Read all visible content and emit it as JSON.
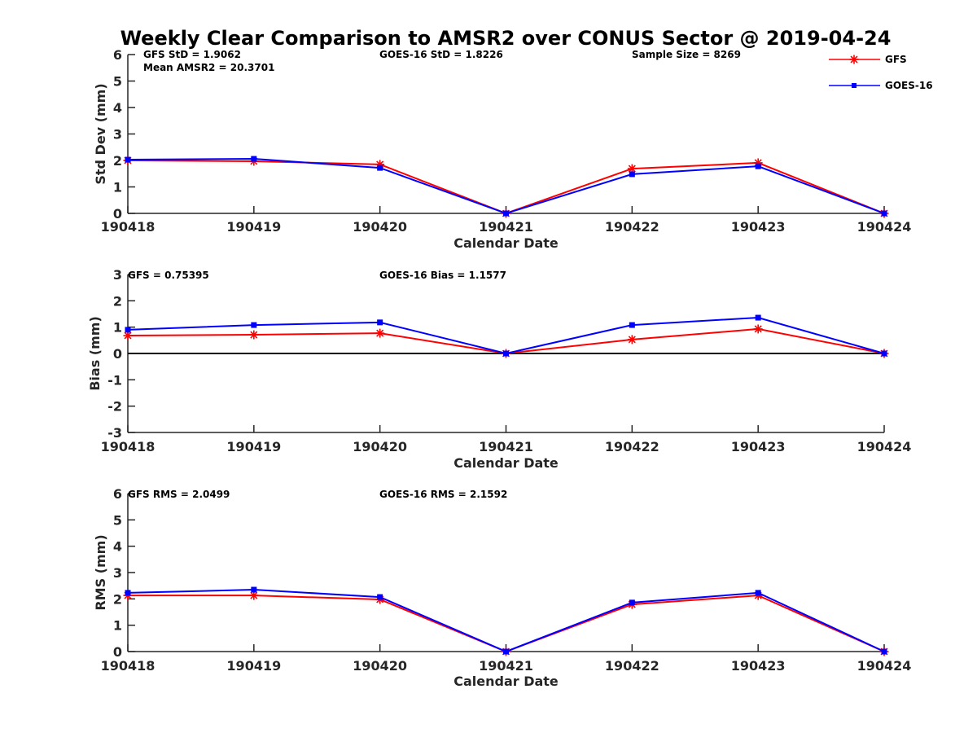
{
  "title": "Weekly Clear Comparison to AMSR2 over CONUS Sector @ 2019-04-24",
  "legend": {
    "placement": "top-right",
    "entries": [
      {
        "name": "GFS",
        "color": "#ff0000",
        "marker": "asterisk"
      },
      {
        "name": "GOES-16",
        "color": "#0000ff",
        "marker": "square"
      }
    ]
  },
  "chart_data": [
    {
      "type": "line",
      "title": "",
      "xlabel": "Calendar Date",
      "ylabel": "Std Dev (mm)",
      "categories": [
        "190418",
        "190419",
        "190420",
        "190421",
        "190422",
        "190423",
        "190424"
      ],
      "yticks": [
        "0",
        "1",
        "2",
        "3",
        "4",
        "5",
        "6"
      ],
      "ylim": [
        0,
        6
      ],
      "zero_line": false,
      "grid": false,
      "annotations": [
        {
          "id": "gfs",
          "text": "GFS StD = 1.9062"
        },
        {
          "id": "mean",
          "text": "Mean AMSR2 = 20.3701"
        },
        {
          "id": "goes",
          "text": "GOES-16 StD = 1.8226"
        },
        {
          "id": "sample",
          "text": "Sample Size = 8269"
        }
      ],
      "series": [
        {
          "name": "GFS",
          "color": "#ff0000",
          "marker": "asterisk",
          "values": [
            2.0,
            1.97,
            1.85,
            0,
            1.69,
            1.91,
            0
          ]
        },
        {
          "name": "GOES-16",
          "color": "#0000ff",
          "marker": "square",
          "values": [
            2.03,
            2.06,
            1.72,
            0,
            1.48,
            1.78,
            0
          ]
        }
      ]
    },
    {
      "type": "line",
      "title": "",
      "xlabel": "Calendar Date",
      "ylabel": "Bias (mm)",
      "categories": [
        "190418",
        "190419",
        "190420",
        "190421",
        "190422",
        "190423",
        "190424"
      ],
      "yticks": [
        "-3",
        "-2",
        "-1",
        "0",
        "1",
        "2",
        "3"
      ],
      "ylim": [
        -3,
        3
      ],
      "zero_line": true,
      "grid": false,
      "annotations": [
        {
          "id": "gfs",
          "text": "GFS = 0.75395"
        },
        {
          "id": "goes",
          "text": "GOES-16 Bias  = 1.1577"
        }
      ],
      "series": [
        {
          "name": "GFS",
          "color": "#ff0000",
          "marker": "asterisk",
          "values": [
            0.68,
            0.71,
            0.77,
            0,
            0.53,
            0.93,
            0
          ]
        },
        {
          "name": "GOES-16",
          "color": "#0000ff",
          "marker": "square",
          "values": [
            0.9,
            1.08,
            1.18,
            0,
            1.08,
            1.36,
            0
          ]
        }
      ]
    },
    {
      "type": "line",
      "title": "",
      "xlabel": "Calendar Date",
      "ylabel": "RMS (mm)",
      "categories": [
        "190418",
        "190419",
        "190420",
        "190421",
        "190422",
        "190423",
        "190424"
      ],
      "yticks": [
        "0",
        "1",
        "2",
        "3",
        "4",
        "5",
        "6"
      ],
      "ylim": [
        0,
        6
      ],
      "zero_line": false,
      "grid": false,
      "annotations": [
        {
          "id": "gfs",
          "text": "GFS RMS = 2.0499"
        },
        {
          "id": "goes",
          "text": "GOES-16 RMS = 2.1592"
        }
      ],
      "series": [
        {
          "name": "GFS",
          "color": "#ff0000",
          "marker": "asterisk",
          "values": [
            2.13,
            2.13,
            1.98,
            0,
            1.79,
            2.13,
            0
          ]
        },
        {
          "name": "GOES-16",
          "color": "#0000ff",
          "marker": "square",
          "values": [
            2.23,
            2.35,
            2.07,
            0,
            1.86,
            2.23,
            0
          ]
        }
      ]
    }
  ]
}
